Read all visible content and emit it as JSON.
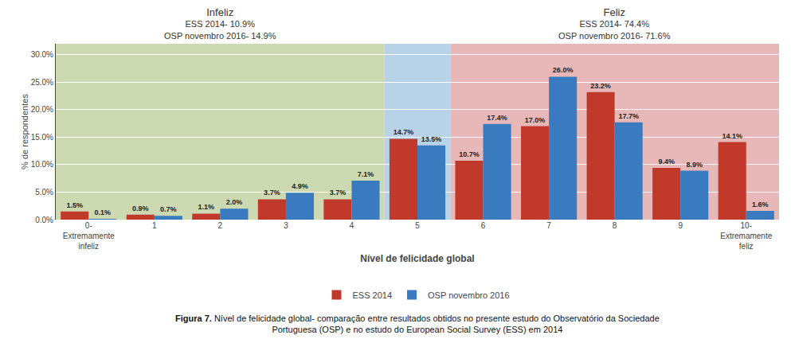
{
  "chart_data": {
    "type": "bar",
    "xlabel": "Nível de felicidade global",
    "ylabel": "% de respondentes",
    "categories": [
      "0-\nExtremamente\ninfeliz",
      "1",
      "2",
      "3",
      "4",
      "5",
      "6",
      "7",
      "8",
      "9",
      "10-\nExtremamente\nfeliz"
    ],
    "series": [
      {
        "name": "ESS 2014",
        "color": "#c0392b",
        "values": [
          1.5,
          0.9,
          1.1,
          3.7,
          3.7,
          14.7,
          10.7,
          17.0,
          23.2,
          9.4,
          14.1
        ],
        "value_labels": [
          "1.5%",
          "0.9%",
          "1.1%",
          "3.7%",
          "3.7%",
          "14.7%",
          "10.7%",
          "17.0%",
          "23.2%",
          "9.4%",
          "14.1%"
        ]
      },
      {
        "name": "OSP novembro 2016",
        "color": "#3a7abf",
        "values": [
          0.1,
          0.7,
          2.0,
          4.9,
          7.1,
          13.5,
          17.4,
          26.0,
          17.7,
          8.9,
          1.6
        ],
        "value_labels": [
          "0.1%",
          "0.7%",
          "2.0%",
          "4.9%",
          "7.1%",
          "13.5%",
          "17.4%",
          "26.0%",
          "17.7%",
          "8.9%",
          "1.6%"
        ]
      }
    ],
    "ylim": [
      0,
      32
    ],
    "yticks": [
      {
        "value": 0,
        "label": "0.0%"
      },
      {
        "value": 5,
        "label": "5.0%"
      },
      {
        "value": 10,
        "label": "10.0%"
      },
      {
        "value": 15,
        "label": "15.0%"
      },
      {
        "value": 20,
        "label": "20.0%"
      },
      {
        "value": 25,
        "label": "25.0%"
      },
      {
        "value": 30,
        "label": "30.0%"
      }
    ],
    "grid": true,
    "data_labels": true,
    "legend": "bottom",
    "regions": [
      {
        "from": "0-\nExtremamente\ninfeliz",
        "to": "4",
        "color": "#cdd9b0",
        "texts": [
          "Infeliz",
          "ESS 2014- 10.9%",
          "OSP novembro 2016- 14.9%"
        ]
      },
      {
        "from": "5",
        "to": "5",
        "color": "#b8d2e8"
      },
      {
        "from": "6",
        "to": "10-\nExtremamente\nfeliz",
        "color": "#e8b8b8",
        "texts": [
          "Feliz",
          "ESS 2014- 74.4%",
          "OSP novembro 2016- 71.6%"
        ]
      }
    ],
    "caption": [
      "Figura 7.",
      "Nível de felicidade global- comparação entre resultados obtidos no presente estudo do Observatório da Sociedade\nPortuguesa (OSP) e no estudo do European Social Survey (ESS) em 2014"
    ]
  }
}
